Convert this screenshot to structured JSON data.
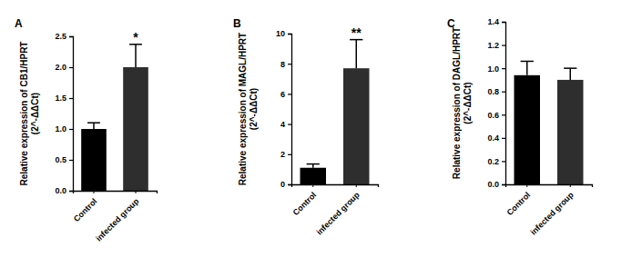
{
  "chart_data": [
    {
      "type": "bar",
      "title": "A",
      "y_label": "Relative expression of CB1/HPRT (2^-ΔΔCt)",
      "categories": [
        "Control",
        "infected group"
      ],
      "values": [
        1.0,
        2.0
      ],
      "errors": [
        0.1,
        0.37
      ],
      "annotations": [
        null,
        "*"
      ],
      "colors": [
        "#000000",
        "#2e2e2e"
      ],
      "ylim": [
        0,
        2.5
      ],
      "yticks": [
        {
          "value": 0,
          "label": "0.0"
        },
        0.5,
        {
          "value": 1,
          "label": "1.0"
        },
        1.5,
        {
          "value": 2,
          "label": "2.0"
        },
        2.5
      ]
    },
    {
      "type": "bar",
      "title": "B",
      "y_label": "Relative expression of MAGL/HPRT (2^-ΔΔCt)",
      "categories": [
        "Control",
        "infected group"
      ],
      "values": [
        1.1,
        7.7
      ],
      "errors": [
        0.25,
        1.9
      ],
      "annotations": [
        null,
        "**"
      ],
      "colors": [
        "#000000",
        "#2e2e2e"
      ],
      "ylim": [
        0,
        10
      ],
      "yticks": [
        0,
        2,
        4,
        6,
        8,
        10
      ]
    },
    {
      "type": "bar",
      "title": "C",
      "y_label": "Relative expression of DAGL/HPRT (2^-ΔΔCt)",
      "categories": [
        "Control",
        "infected group"
      ],
      "values": [
        0.94,
        0.9
      ],
      "errors": [
        0.12,
        0.1
      ],
      "colors": [
        "#000000",
        "#2e2e2e"
      ],
      "ylim": [
        0,
        1.4
      ],
      "yticks": [
        {
          "value": 0,
          "label": "0.0"
        },
        0.2,
        0.4,
        0.6,
        0.8,
        {
          "value": 1,
          "label": "1.0"
        },
        1.2,
        1.4
      ]
    }
  ]
}
